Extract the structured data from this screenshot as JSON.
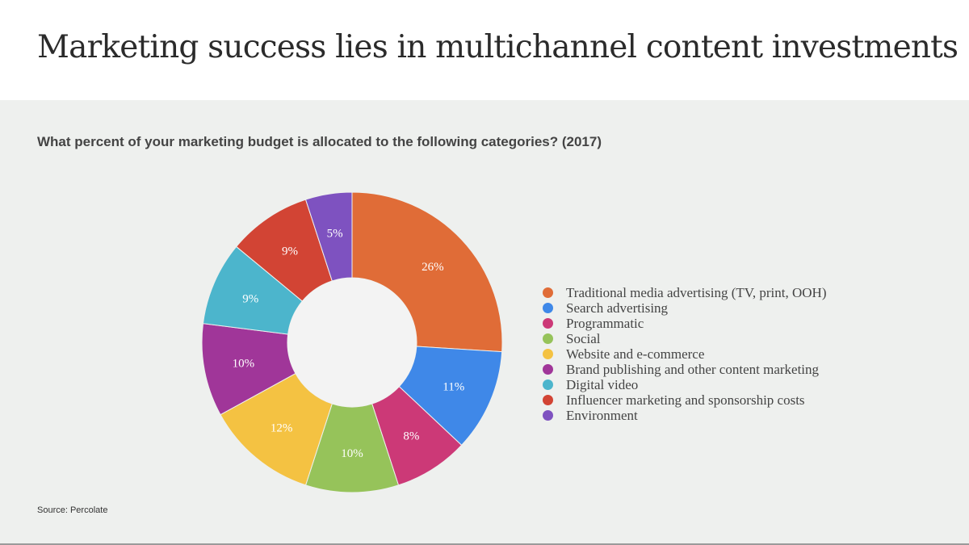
{
  "header": {
    "title": "Marketing success lies in multichannel content investments"
  },
  "question": "What percent of your marketing budget is allocated to the following categories? (2017)",
  "source": "Source: Percolate",
  "chart_data": {
    "type": "pie",
    "subtype": "donut",
    "title": "What percent of your marketing budget is allocated to the following categories? (2017)",
    "legend_position": "right",
    "slices": [
      {
        "name": "Traditional media advertising (TV, print, OOH)",
        "value": 26,
        "label": "26%",
        "color": "#e06c37"
      },
      {
        "name": "Search advertising",
        "value": 11,
        "label": "11%",
        "color": "#3f88e8"
      },
      {
        "name": "Programmatic",
        "value": 8,
        "label": "8%",
        "color": "#cc3977"
      },
      {
        "name": "Social",
        "value": 10,
        "label": "10%",
        "color": "#96c35a"
      },
      {
        "name": "Website and e-commerce",
        "value": 12,
        "label": "12%",
        "color": "#f4c242"
      },
      {
        "name": "Brand publishing and other content marketing",
        "value": 10,
        "label": "10%",
        "color": "#a03699"
      },
      {
        "name": "Digital video",
        "value": 9,
        "label": "9%",
        "color": "#4cb5cc"
      },
      {
        "name": "Influencer marketing and sponsorship costs",
        "value": 9,
        "label": "9%",
        "color": "#d24434"
      },
      {
        "name": "Environment",
        "value": 5,
        "label": "5%",
        "color": "#7e52c0"
      }
    ]
  },
  "colors": {
    "panel_background": "#eef0ee",
    "donut_hole": "#f3f3f3"
  }
}
